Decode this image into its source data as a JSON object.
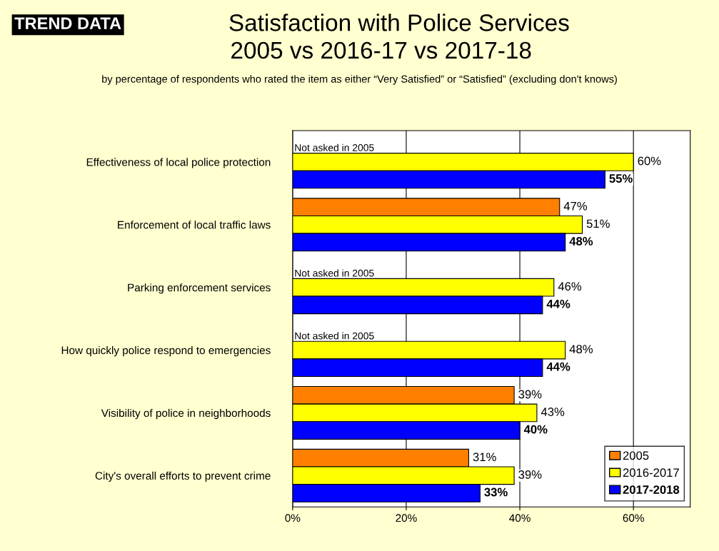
{
  "chart_data": {
    "type": "bar",
    "orientation": "horizontal",
    "title": "Satisfaction with Police Services\n2005 vs 2016-17 vs 2017-18",
    "subtitle": "by percentage of respondents who rated the item as either “Very Satisfied” or “Satisfied” (excluding don't knows)",
    "categories": [
      "Effectiveness of local police protection",
      "Enforcement of local traffic laws",
      "Parking enforcement services",
      "How quickly police respond to emergencies",
      "Visibility of police in neighborhoods",
      "City's overall efforts to prevent crime"
    ],
    "series": [
      {
        "name": "2005",
        "color": "#ff8000",
        "values": [
          null,
          47,
          null,
          null,
          39,
          31
        ],
        "value_labels": [
          null,
          "47%",
          null,
          null,
          "39%",
          "31%"
        ]
      },
      {
        "name": "2016-2017",
        "color": "#ffff00",
        "values": [
          60,
          51,
          46,
          48,
          43,
          39
        ],
        "value_labels": [
          "60%",
          "51%",
          "46%",
          "48%",
          "43%",
          "39%"
        ]
      },
      {
        "name": "2017-2018",
        "color": "#0000ff",
        "values": [
          55,
          48,
          44,
          44,
          40,
          33
        ],
        "value_labels": [
          "55%",
          "48%",
          "44%",
          "44%",
          "40%",
          "33%"
        ]
      }
    ],
    "xlim": [
      0,
      70
    ],
    "xticks": [
      {
        "value": 0,
        "label": "0%"
      },
      {
        "value": 20,
        "label": "20%"
      },
      {
        "value": 40,
        "label": "40%"
      },
      {
        "value": 60,
        "label": "60%"
      }
    ],
    "grid": "x",
    "legend": "bottom right",
    "annotations": [
      "TREND DATA",
      "Not asked in 2005",
      "Not asked in 2005",
      "Not asked in 2005"
    ]
  }
}
